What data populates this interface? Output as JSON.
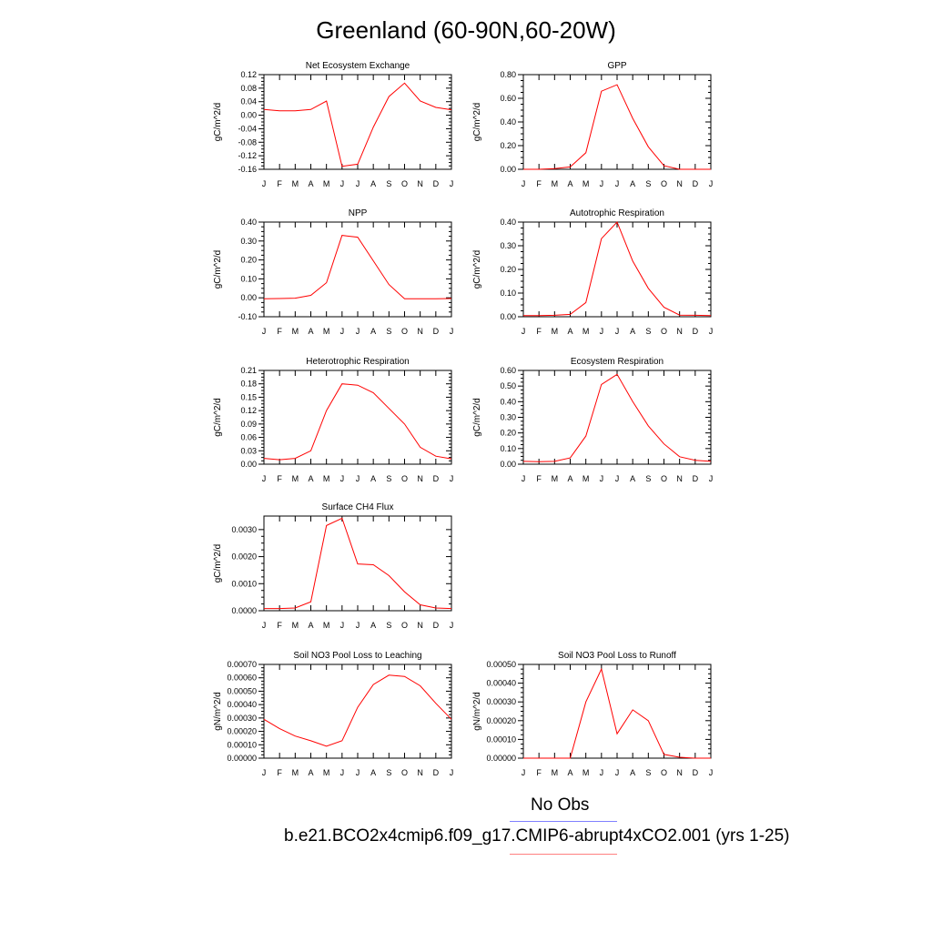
{
  "title": "Greenland (60-90N,60-20W)",
  "months": [
    "J",
    "F",
    "M",
    "A",
    "M",
    "J",
    "J",
    "A",
    "S",
    "O",
    "N",
    "D",
    "J"
  ],
  "legend": {
    "obs_label": "No Obs",
    "obs_color": "#8080ff",
    "model_label": "b.e21.BCO2x4cmip6.f09_g17.CMIP6-abrupt4xCO2.001 (yrs 1-25)",
    "model_color": "#ff8080"
  },
  "series_color": "#ff0000",
  "chart_data": [
    {
      "type": "line",
      "title": "Net Ecosystem Exchange",
      "ylabel": "gC/m^2/d",
      "ylim": [
        -0.16,
        0.12
      ],
      "yticks": [
        "0.12",
        "0.08",
        "0.04",
        "0.00",
        "-0.04",
        "-0.08",
        "-0.12",
        "-0.16"
      ],
      "tickvals": [
        0.12,
        0.08,
        0.04,
        0.0,
        -0.04,
        -0.08,
        -0.12,
        -0.16
      ],
      "values": [
        0.017,
        0.013,
        0.013,
        0.017,
        0.042,
        -0.151,
        -0.145,
        -0.035,
        0.055,
        0.095,
        0.042,
        0.023,
        0.016
      ]
    },
    {
      "type": "line",
      "title": "GPP",
      "ylabel": "gC/m^2/d",
      "ylim": [
        0,
        0.8
      ],
      "yticks": [
        "0.80",
        "0.60",
        "0.40",
        "0.20",
        "0.00"
      ],
      "tickvals": [
        0.8,
        0.6,
        0.4,
        0.2,
        0.0
      ],
      "values": [
        0.0,
        0.0,
        0.005,
        0.02,
        0.14,
        0.66,
        0.715,
        0.43,
        0.19,
        0.03,
        0.0,
        0.0,
        0.0
      ]
    },
    {
      "type": "line",
      "title": "NPP",
      "ylabel": "gC/m^2/d",
      "ylim": [
        -0.1,
        0.4
      ],
      "yticks": [
        "0.40",
        "0.30",
        "0.20",
        "0.10",
        "0.00",
        "-0.10"
      ],
      "tickvals": [
        0.4,
        0.3,
        0.2,
        0.1,
        0.0,
        -0.1
      ],
      "values": [
        -0.005,
        -0.004,
        -0.002,
        0.013,
        0.08,
        0.33,
        0.32,
        0.195,
        0.07,
        -0.005,
        -0.005,
        -0.005,
        -0.004
      ]
    },
    {
      "type": "line",
      "title": "Autotrophic Respiration",
      "ylabel": "gC/m^2/d",
      "ylim": [
        0,
        0.4
      ],
      "yticks": [
        "0.40",
        "0.30",
        "0.20",
        "0.10",
        "0.00"
      ],
      "tickvals": [
        0.4,
        0.3,
        0.2,
        0.1,
        0.0
      ],
      "values": [
        0.005,
        0.005,
        0.006,
        0.01,
        0.06,
        0.33,
        0.4,
        0.235,
        0.12,
        0.04,
        0.007,
        0.006,
        0.005
      ]
    },
    {
      "type": "line",
      "title": "Heterotrophic Respiration",
      "ylabel": "gC/m^2/d",
      "ylim": [
        0,
        0.21
      ],
      "yticks": [
        "0.21",
        "0.18",
        "0.15",
        "0.12",
        "0.09",
        "0.06",
        "0.03",
        "0.00"
      ],
      "tickvals": [
        0.21,
        0.18,
        0.15,
        0.12,
        0.09,
        0.06,
        0.03,
        0.0
      ],
      "values": [
        0.013,
        0.01,
        0.013,
        0.03,
        0.12,
        0.18,
        0.177,
        0.16,
        0.125,
        0.09,
        0.038,
        0.018,
        0.012
      ]
    },
    {
      "type": "line",
      "title": "Ecosystem Respiration",
      "ylabel": "gC/m^2/d",
      "ylim": [
        0,
        0.6
      ],
      "yticks": [
        "0.60",
        "0.50",
        "0.40",
        "0.30",
        "0.20",
        "0.10",
        "0.00"
      ],
      "tickvals": [
        0.6,
        0.5,
        0.4,
        0.3,
        0.2,
        0.1,
        0.0
      ],
      "values": [
        0.018,
        0.016,
        0.018,
        0.04,
        0.18,
        0.51,
        0.575,
        0.4,
        0.245,
        0.13,
        0.048,
        0.025,
        0.018
      ]
    },
    {
      "type": "line",
      "title": "Surface CH4 Flux",
      "ylabel": "gC/m^2/d",
      "ylim": [
        0,
        0.0035
      ],
      "yticks": [
        "0.0030",
        "0.0020",
        "0.0010",
        "0.0000"
      ],
      "tickvals": [
        0.003,
        0.002,
        0.001,
        0.0
      ],
      "values": [
        8e-05,
        8e-05,
        0.0001,
        0.00033,
        0.00315,
        0.00342,
        0.00173,
        0.0017,
        0.0013,
        0.0007,
        0.00022,
        0.0001,
        8e-05
      ]
    },
    {
      "type": "line",
      "title": "Soil NO3 Pool Loss to Leaching",
      "ylabel": "gN/m^2/d",
      "ylim": [
        0,
        0.0007
      ],
      "yticks": [
        "0.00070",
        "0.00060",
        "0.00050",
        "0.00040",
        "0.00030",
        "0.00020",
        "0.00010",
        "0.00000"
      ],
      "tickvals": [
        0.0007,
        0.0006,
        0.0005,
        0.0004,
        0.0003,
        0.0002,
        0.0001,
        0.0
      ],
      "values": [
        0.00029,
        0.00022,
        0.000165,
        0.00013,
        9e-05,
        0.00013,
        0.00038,
        0.00055,
        0.00062,
        0.00061,
        0.00054,
        0.00041,
        0.00029
      ]
    },
    {
      "type": "line",
      "title": "Soil NO3 Pool Loss to Runoff",
      "ylabel": "gN/m^2/d",
      "ylim": [
        0,
        0.0005
      ],
      "yticks": [
        "0.00050",
        "0.00040",
        "0.00030",
        "0.00020",
        "0.00010",
        "0.00000"
      ],
      "tickvals": [
        0.0005,
        0.0004,
        0.0003,
        0.0002,
        0.0001,
        0.0
      ],
      "values": [
        0.0,
        0.0,
        0.0,
        0.0,
        0.0003,
        0.000475,
        0.00013,
        0.000258,
        0.0002,
        2e-05,
        5e-06,
        0.0,
        0.0
      ]
    }
  ]
}
